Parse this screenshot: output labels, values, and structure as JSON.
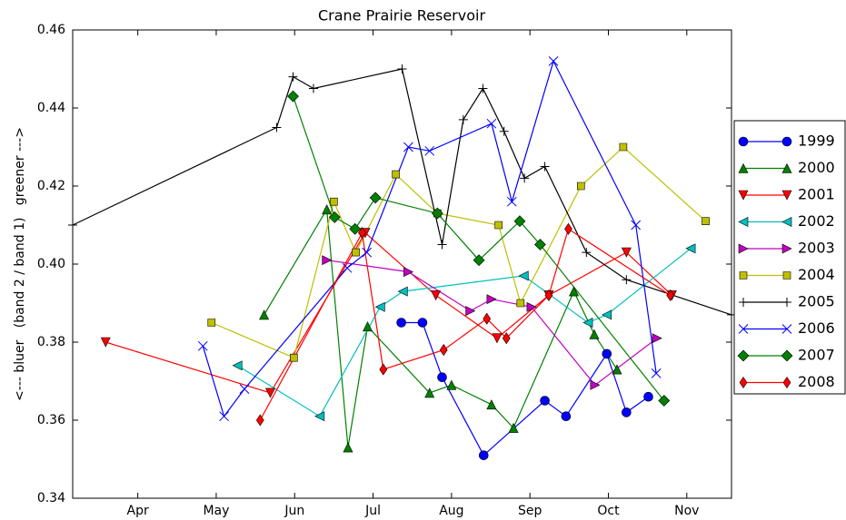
{
  "chart_data": {
    "type": "line",
    "title": "Crane Prairie Reservoir",
    "ylabel": "<--- bluer   (band 2 / band 1)   greener --->",
    "xlim": [
      3.17,
      11.57
    ],
    "xticks": [
      {
        "value": 4,
        "label": "Apr"
      },
      {
        "value": 5,
        "label": "May"
      },
      {
        "value": 6,
        "label": "Jun"
      },
      {
        "value": 7,
        "label": "Jul"
      },
      {
        "value": 8,
        "label": "Aug"
      },
      {
        "value": 9,
        "label": "Sep"
      },
      {
        "value": 10,
        "label": "Oct"
      },
      {
        "value": 11,
        "label": "Nov"
      }
    ],
    "ylim": [
      0.34,
      0.46
    ],
    "yticks": [
      0.34,
      0.36,
      0.38,
      {
        "value": 0.4,
        "label": "0.40"
      },
      0.42,
      0.44,
      0.46
    ],
    "legend": "outside right",
    "series": [
      {
        "name": "1999",
        "color": "#0000ff",
        "marker": "circle",
        "x": [
          7.36,
          7.63,
          7.88,
          8.41,
          9.19,
          9.46,
          9.98,
          10.23,
          10.51
        ],
        "values": [
          0.385,
          0.385,
          0.371,
          0.351,
          0.365,
          0.361,
          0.377,
          0.362,
          0.366
        ]
      },
      {
        "name": "2000",
        "color": "#008000",
        "marker": "triangle-up",
        "x": [
          5.61,
          6.41,
          6.68,
          6.93,
          7.72,
          8.0,
          8.51,
          8.79,
          9.56,
          9.82,
          10.11
        ],
        "values": [
          0.387,
          0.414,
          0.353,
          0.384,
          0.367,
          0.369,
          0.364,
          0.358,
          0.393,
          0.382,
          0.373
        ]
      },
      {
        "name": "2001",
        "color": "#ff0000",
        "marker": "triangle-down",
        "x": [
          3.59,
          5.69,
          6.9,
          7.8,
          8.58,
          9.24,
          10.23,
          10.81
        ],
        "values": [
          0.38,
          0.367,
          0.408,
          0.392,
          0.381,
          0.392,
          0.403,
          0.392
        ]
      },
      {
        "name": "2002",
        "color": "#00bfbf",
        "marker": "triangle-left",
        "x": [
          5.27,
          6.32,
          7.09,
          7.38,
          8.92,
          9.74,
          9.98,
          11.05
        ],
        "values": [
          0.374,
          0.361,
          0.389,
          0.393,
          0.397,
          0.385,
          0.387,
          0.404
        ]
      },
      {
        "name": "2003",
        "color": "#bf00bf",
        "marker": "triangle-right",
        "x": [
          6.41,
          7.45,
          8.24,
          8.51,
          9.02,
          9.83,
          10.62
        ],
        "values": [
          0.401,
          0.398,
          0.388,
          0.391,
          0.389,
          0.369,
          0.381
        ]
      },
      {
        "name": "2004",
        "color": "#bfbf00",
        "marker": "square",
        "x": [
          4.94,
          5.99,
          6.5,
          6.78,
          7.29,
          7.82,
          8.6,
          8.88,
          9.65,
          10.19,
          11.24
        ],
        "values": [
          0.385,
          0.376,
          0.416,
          0.403,
          0.423,
          0.413,
          0.41,
          0.39,
          0.42,
          0.43,
          0.411
        ]
      },
      {
        "name": "2005",
        "color": "#000000",
        "marker": "plus",
        "x": [
          3.17,
          5.77,
          5.98,
          6.24,
          7.37,
          7.88,
          8.15,
          8.4,
          8.67,
          8.93,
          9.19,
          9.72,
          10.23,
          11.57
        ],
        "values": [
          0.41,
          0.435,
          0.448,
          0.445,
          0.45,
          0.405,
          0.437,
          0.445,
          0.434,
          0.422,
          0.425,
          0.403,
          0.396,
          0.387
        ]
      },
      {
        "name": "2006",
        "color": "#0000ff",
        "marker": "x",
        "x": [
          4.83,
          5.1,
          5.36,
          6.67,
          6.92,
          7.45,
          7.72,
          8.51,
          8.77,
          9.3,
          10.35,
          10.61
        ],
        "values": [
          0.379,
          0.361,
          0.368,
          0.399,
          0.403,
          0.43,
          0.429,
          0.436,
          0.416,
          0.452,
          0.41,
          0.372
        ]
      },
      {
        "name": "2007",
        "color": "#008000",
        "marker": "diamond",
        "x": [
          5.98,
          6.51,
          6.77,
          7.03,
          7.82,
          8.35,
          8.87,
          9.13,
          10.71
        ],
        "values": [
          0.443,
          0.412,
          0.409,
          0.417,
          0.413,
          0.401,
          0.411,
          0.405,
          0.365
        ]
      },
      {
        "name": "2008",
        "color": "#ff0000",
        "marker": "thin-diamond",
        "x": [
          5.56,
          6.86,
          7.13,
          7.9,
          8.45,
          8.7,
          9.24,
          9.49,
          10.79
        ],
        "values": [
          0.36,
          0.408,
          0.373,
          0.378,
          0.386,
          0.381,
          0.392,
          0.409,
          0.392
        ]
      }
    ]
  }
}
